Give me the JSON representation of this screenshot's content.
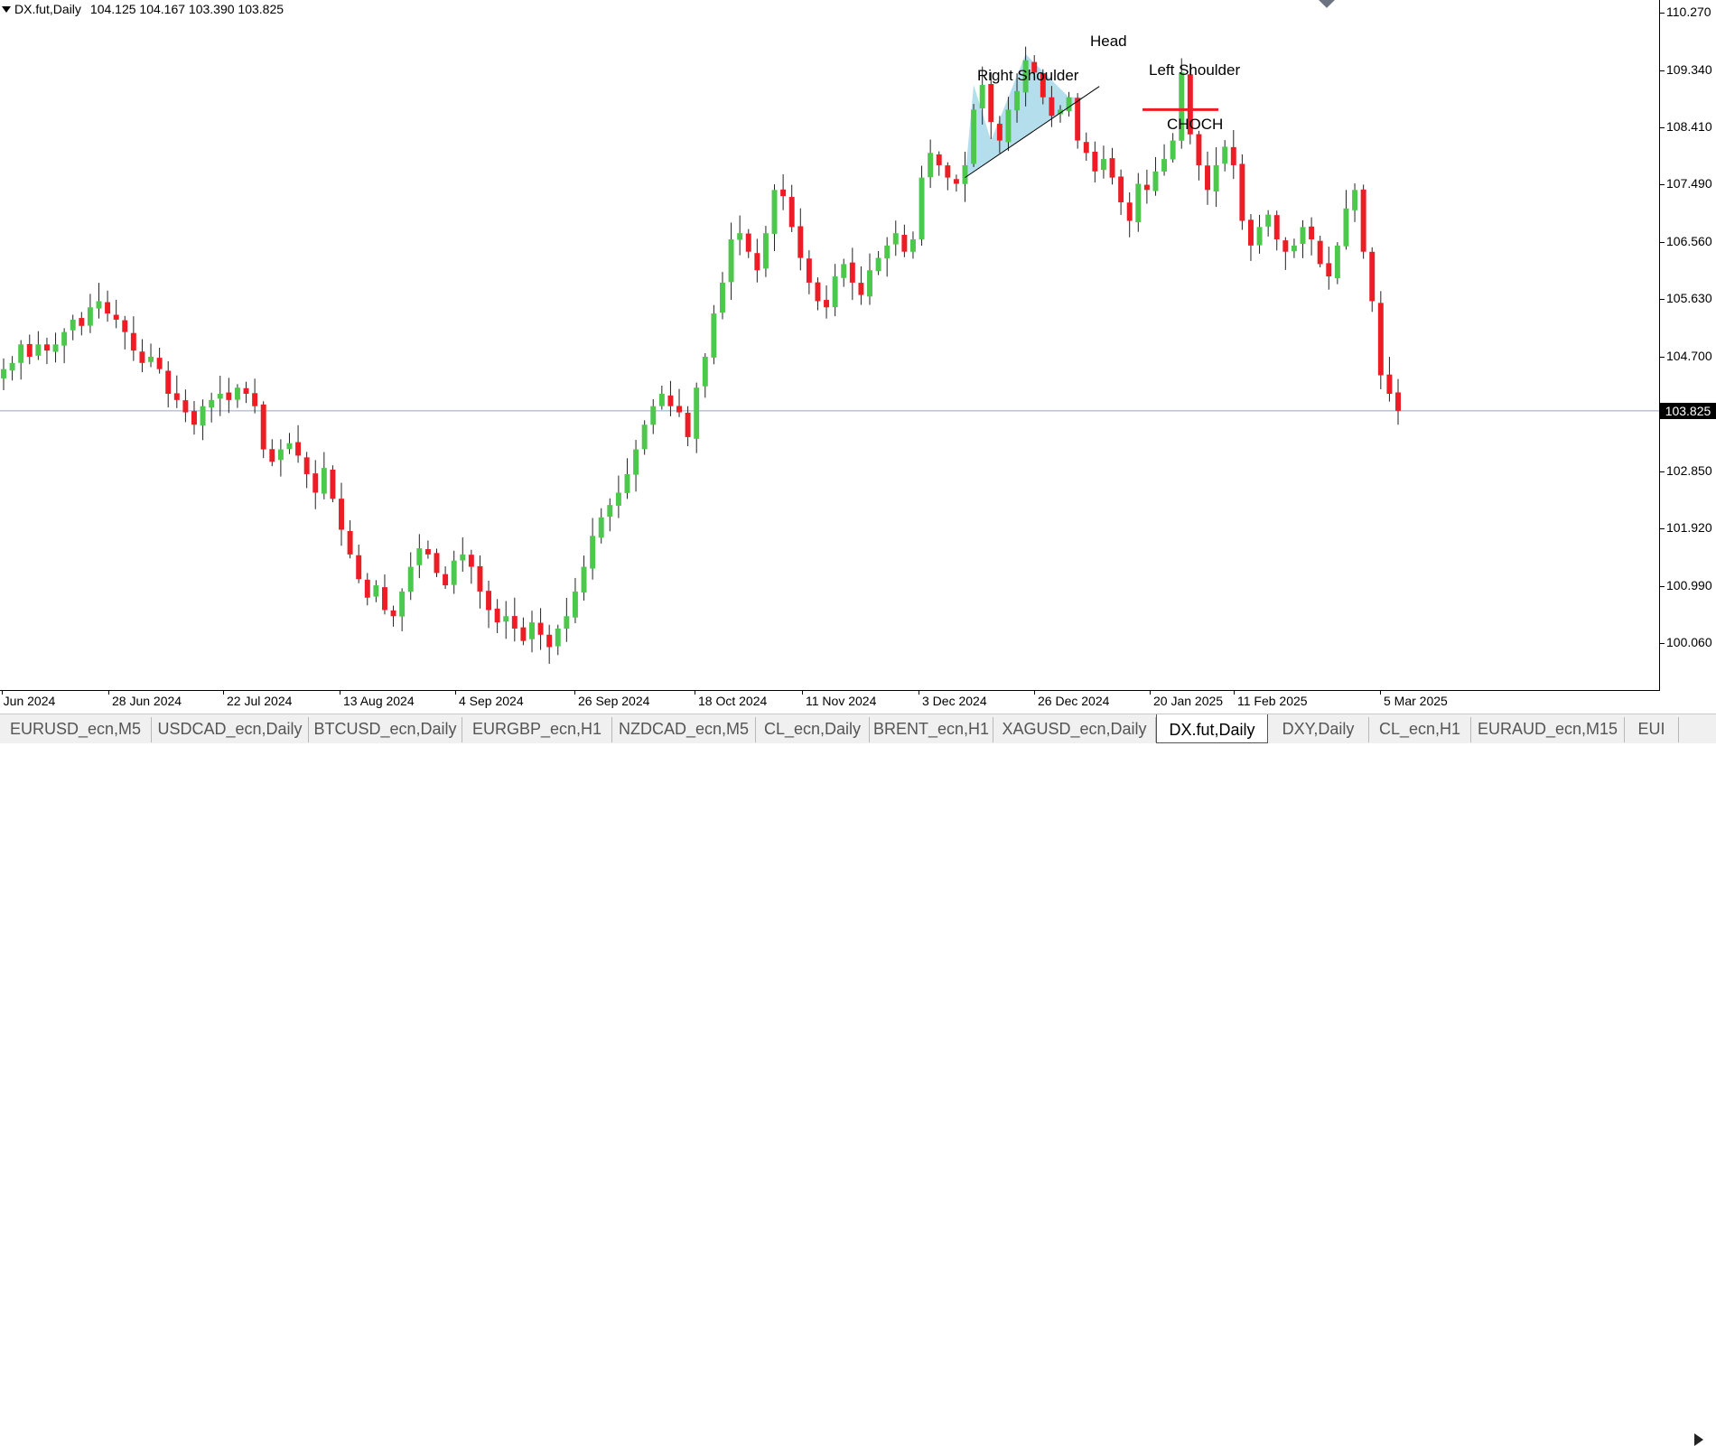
{
  "header": {
    "symbol": "DX.fut,Daily",
    "ohlc": "104.125 104.167 103.390 103.825"
  },
  "colors": {
    "bull": "#4cc94c",
    "bear": "#ee1c25",
    "wick": "#222222",
    "grid_line": "#9aa4c3",
    "pattern_fill": "#a8d8ea",
    "choch_line": "#ee1c25"
  },
  "annotations": {
    "head": "Head",
    "right_shoulder": "Right Shoulder",
    "left_shoulder": "Left Shoulder",
    "choch": "CHOCH"
  },
  "current_price": "103.825",
  "tabs": [
    {
      "label": "EURUSD_ecn,M5"
    },
    {
      "label": "USDCAD_ecn,Daily"
    },
    {
      "label": "BTCUSD_ecn,Daily"
    },
    {
      "label": "EURGBP_ecn,H1"
    },
    {
      "label": "NZDCAD_ecn,M5"
    },
    {
      "label": "CL_ecn,Daily"
    },
    {
      "label": "BRENT_ecn,H1"
    },
    {
      "label": "XAGUSD_ecn,Daily"
    },
    {
      "label": "DX.fut,Daily"
    },
    {
      "label": "DXY,Daily"
    },
    {
      "label": "CL_ecn,H1"
    },
    {
      "label": "EURAUD_ecn,M15"
    },
    {
      "label": "EUI"
    }
  ],
  "active_tab": "DX.fut,Daily",
  "chart_data": {
    "type": "candlestick",
    "symbol": "DX.fut",
    "timeframe": "Daily",
    "y_ticks": [
      "110.270",
      "109.340",
      "108.410",
      "107.490",
      "106.560",
      "105.630",
      "104.700",
      "102.850",
      "101.920",
      "100.990",
      "100.060"
    ],
    "x_ticks": [
      "6 Jun 2024",
      "28 Jun 2024",
      "22 Jul 2024",
      "13 Aug 2024",
      "4 Sep 2024",
      "26 Sep 2024",
      "18 Oct 2024",
      "11 Nov 2024",
      "3 Dec 2024",
      "26 Dec 2024",
      "20 Jan 2025",
      "11 Feb 2025",
      "5 Mar 2025"
    ],
    "ylim": [
      99.5,
      110.5
    ],
    "horizontal_line": 103.825,
    "closes": [
      104.5,
      104.6,
      104.9,
      104.7,
      104.9,
      104.8,
      104.9,
      105.1,
      105.3,
      105.2,
      105.5,
      105.6,
      105.4,
      105.3,
      105.1,
      104.8,
      104.6,
      104.7,
      104.5,
      104.1,
      104.0,
      103.8,
      103.6,
      103.9,
      104.0,
      104.1,
      104.0,
      104.2,
      104.1,
      103.9,
      103.2,
      103.0,
      103.2,
      103.3,
      103.1,
      102.8,
      102.5,
      102.9,
      102.4,
      101.9,
      101.5,
      101.1,
      100.8,
      101.0,
      100.6,
      100.5,
      100.9,
      101.3,
      101.6,
      101.5,
      101.2,
      101.0,
      101.4,
      101.5,
      101.3,
      100.9,
      100.6,
      100.4,
      100.5,
      100.3,
      100.1,
      100.4,
      100.2,
      100.0,
      100.3,
      100.5,
      100.9,
      101.3,
      101.8,
      102.1,
      102.3,
      102.5,
      102.8,
      103.2,
      103.6,
      103.9,
      104.1,
      103.9,
      103.8,
      103.4,
      104.2,
      104.7,
      105.4,
      105.9,
      106.6,
      106.7,
      106.4,
      106.1,
      106.7,
      107.4,
      107.3,
      106.8,
      106.3,
      105.9,
      105.6,
      105.5,
      106.0,
      106.2,
      105.9,
      105.7,
      106.1,
      106.3,
      106.5,
      106.7,
      106.4,
      106.6,
      107.6,
      108.0,
      107.8,
      107.6,
      107.5,
      107.8,
      108.7,
      109.1,
      108.5,
      108.2,
      108.7,
      109.0,
      109.5,
      109.3,
      108.9,
      108.6,
      108.7,
      108.9,
      108.2,
      108.0,
      107.7,
      107.9,
      107.6,
      107.2,
      106.9,
      107.5,
      107.4,
      107.7,
      107.9,
      108.2,
      109.3,
      108.3,
      107.8,
      107.4,
      107.8,
      108.1,
      107.8,
      106.9,
      106.5,
      106.8,
      107.0,
      106.6,
      106.4,
      106.5,
      106.8,
      106.6,
      106.2,
      106.0,
      106.5,
      107.1,
      107.4,
      106.4,
      105.6,
      104.4,
      104.1,
      103.825
    ],
    "patterns": [
      {
        "label": "Head",
        "type": "head-and-shoulders"
      },
      {
        "label": "CHOCH",
        "type": "change-of-character",
        "level": 108.7
      }
    ]
  }
}
